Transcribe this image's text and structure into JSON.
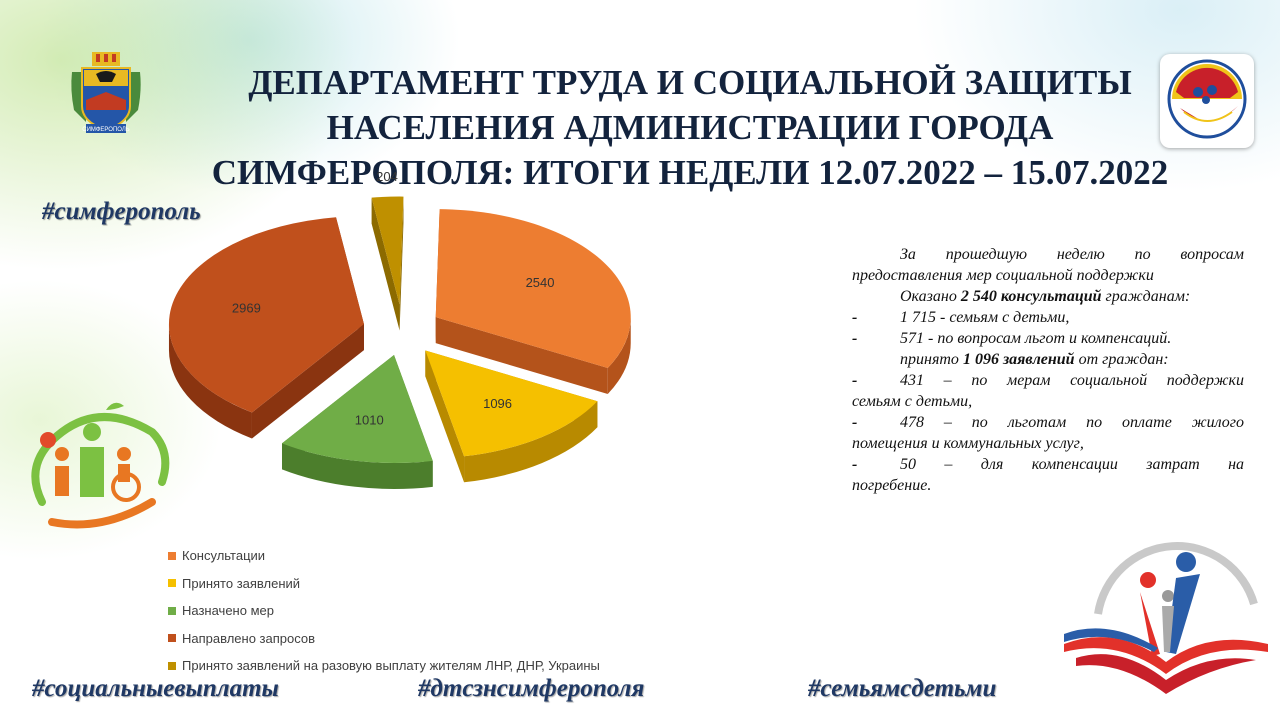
{
  "title": {
    "line1": "ДЕПАРТАМЕНТ ТРУДА И СОЦИАЛЬНОЙ ЗАЩИТЫ",
    "line2": "НАСЕЛЕНИЯ АДМИНИСТРАЦИИ ГОРОДА",
    "line3": "СИМФЕРОПОЛЯ: ИТОГИ НЕДЕЛИ 12.07.2022 – 15.07.2022"
  },
  "hashtags": {
    "top": "#симферополь",
    "bottom_left": "#социальныевыплаты",
    "bottom_center": "#дтсзнсимферополя",
    "bottom_right": "#семьямсдетьми"
  },
  "summary": {
    "intro": "За прошедшую неделю по вопросам предоставления мер социальной поддержки",
    "consult_prefix": "Оказано ",
    "consult_bold": "2 540 консультаций",
    "consult_suffix": " гражданам:",
    "consult_items": [
      "1 715 - семьям с детьми,",
      "571 - по вопросам льгот и компенсаций."
    ],
    "app_prefix": "принято ",
    "app_bold": "1 096 заявлений",
    "app_suffix": " от граждан:",
    "app_items": [
      {
        "first": "431 – по мерам социальной поддержки",
        "rest": "семьям с детьми,"
      },
      {
        "first": "478 – по льготам по оплате жилого",
        "rest": "помещения и коммунальных услуг,"
      },
      {
        "first": "50 – для компенсации затрат на",
        "rest": "погребение."
      }
    ],
    "dash": "-"
  },
  "logos": {
    "coat_of_arms_text": "СИМФЕРОПОЛЬ"
  },
  "chart_data": {
    "type": "pie",
    "style": "3d-exploded",
    "categories": [
      "Консультации",
      "Принято заявлений",
      "Назначено мер",
      "Направлено запросов",
      "Принято заявлений на разовую выплату жителям ЛНР, ДНР, Украины"
    ],
    "values": [
      2540,
      1096,
      1010,
      2969,
      204
    ],
    "colors": [
      "#ed7d31",
      "#f5c000",
      "#70ad47",
      "#c0501c",
      "#bf9000"
    ],
    "side_colors": [
      "#b4531b",
      "#b88a00",
      "#4c7e2c",
      "#8a3410",
      "#8c6a00"
    ],
    "legend_position": "bottom-left",
    "title": ""
  }
}
